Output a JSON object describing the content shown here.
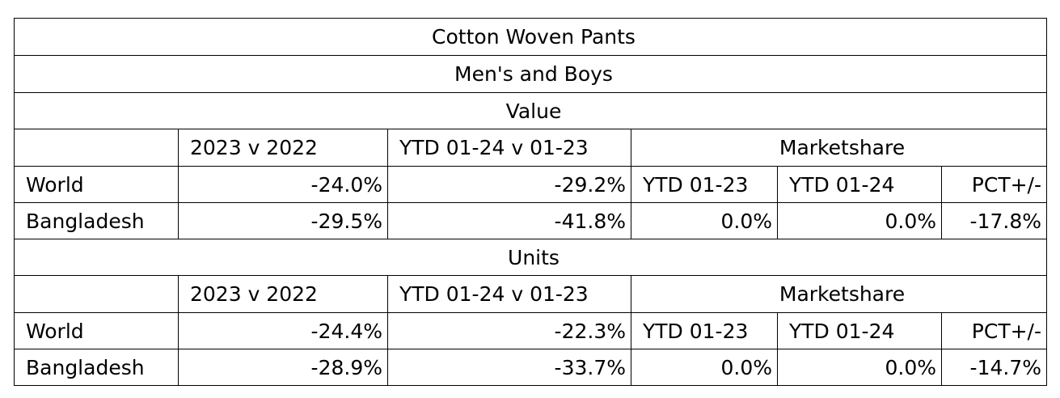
{
  "title": "Cotton Woven Pants",
  "subtitle": "Men's and Boys",
  "sections": [
    {
      "label": "Value",
      "headers": {
        "blank": "",
        "col1": "2023 v 2022",
        "col2": "YTD 01-24 v 01-23",
        "marketshare": "Marketshare"
      },
      "rows": [
        {
          "name": "World",
          "v2023_v_2022": "-24.0%",
          "ytd": "-29.2%",
          "ms_ytd_01_23": "YTD 01-23",
          "ms_ytd_01_24": "YTD 01-24",
          "ms_pct": "PCT+/-"
        },
        {
          "name": "Bangladesh",
          "v2023_v_2022": "-29.5%",
          "ytd": "-41.8%",
          "ms_ytd_01_23": "0.0%",
          "ms_ytd_01_24": "0.0%",
          "ms_pct": "-17.8%"
        }
      ]
    },
    {
      "label": "Units",
      "headers": {
        "blank": "",
        "col1": "2023 v 2022",
        "col2": "YTD 01-24 v 01-23",
        "marketshare": "Marketshare"
      },
      "rows": [
        {
          "name": "World",
          "v2023_v_2022": "-24.4%",
          "ytd": "-22.3%",
          "ms_ytd_01_23": "YTD 01-23",
          "ms_ytd_01_24": "YTD 01-24",
          "ms_pct": "PCT+/-"
        },
        {
          "name": "Bangladesh",
          "v2023_v_2022": "-28.9%",
          "ytd": "-33.7%",
          "ms_ytd_01_23": "0.0%",
          "ms_ytd_01_24": "0.0%",
          "ms_pct": "-14.7%"
        }
      ]
    }
  ]
}
